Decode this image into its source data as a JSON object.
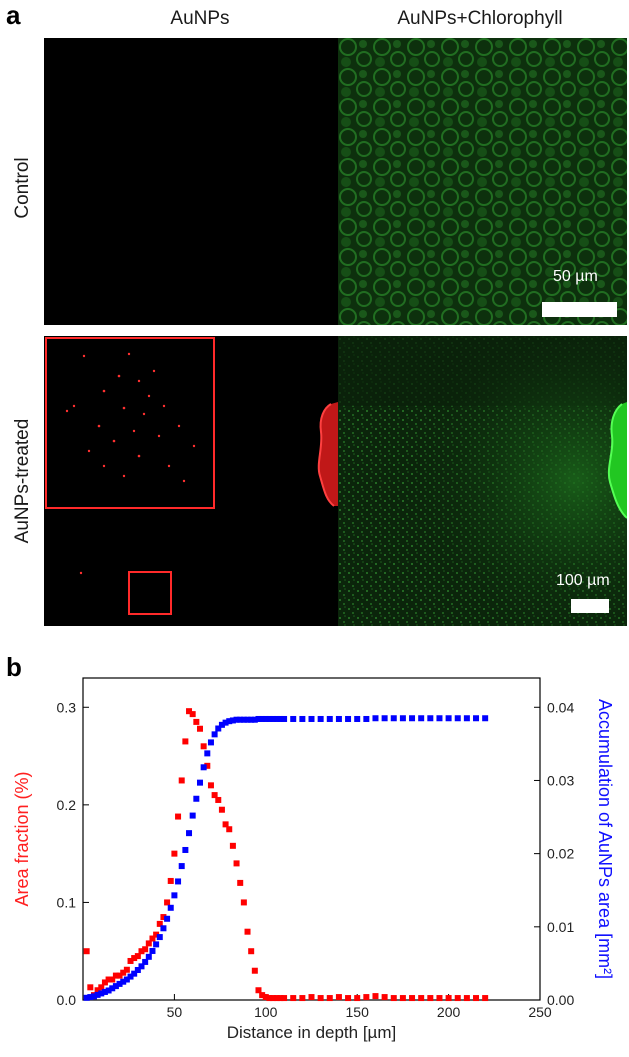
{
  "panel_a": {
    "letter": "a",
    "columns": [
      "AuNPs",
      "AuNPs+Chlorophyll"
    ],
    "rows": [
      "Control",
      "AuNPs-treated"
    ],
    "scale_bars": [
      "50 µm",
      "100 µm"
    ],
    "colors": {
      "au_signal": "#ff2020",
      "chlorophyll": "#2fd12f",
      "background": "#000000"
    }
  },
  "panel_b": {
    "letter": "b"
  },
  "chart_data": {
    "type": "scatter",
    "xlabel": "Distance in depth [µm]",
    "ylabel_left": "Area fraction (%)",
    "ylabel_right": "Accumulation of AuNPs area [mm²]",
    "xlim": [
      0,
      250
    ],
    "ylim_left": [
      0,
      0.33
    ],
    "ylim_right": [
      0,
      0.044
    ],
    "xticks": [
      50,
      100,
      150,
      200,
      250
    ],
    "yticks_left": [
      "0.0",
      "0.1",
      "0.2",
      "0.3"
    ],
    "yticks_right": [
      "0.00",
      "0.01",
      "0.02",
      "0.03",
      "0.04"
    ],
    "grid": false,
    "series": [
      {
        "axis": "left",
        "color": "#ff0000",
        "x": [
          2,
          4,
          6,
          8,
          10,
          12,
          14,
          16,
          18,
          20,
          22,
          24,
          26,
          28,
          30,
          32,
          34,
          36,
          38,
          40,
          42,
          44,
          46,
          48,
          50,
          52,
          54,
          56,
          58,
          60,
          62,
          64,
          66,
          68,
          70,
          72,
          74,
          76,
          78,
          80,
          82,
          84,
          86,
          88,
          90,
          92,
          94,
          96,
          98,
          100,
          102,
          104,
          106,
          108,
          110,
          115,
          120,
          125,
          130,
          135,
          140,
          145,
          150,
          155,
          160,
          165,
          170,
          175,
          180,
          185,
          190,
          195,
          200,
          205,
          210,
          215,
          220
        ],
        "y": [
          0.05,
          0.013,
          0.005,
          0.01,
          0.013,
          0.018,
          0.021,
          0.021,
          0.025,
          0.025,
          0.028,
          0.031,
          0.04,
          0.043,
          0.045,
          0.05,
          0.052,
          0.058,
          0.063,
          0.067,
          0.078,
          0.085,
          0.1,
          0.122,
          0.15,
          0.188,
          0.225,
          0.265,
          0.296,
          0.293,
          0.285,
          0.278,
          0.26,
          0.24,
          0.22,
          0.21,
          0.205,
          0.195,
          0.18,
          0.175,
          0.158,
          0.14,
          0.12,
          0.1,
          0.07,
          0.05,
          0.03,
          0.01,
          0.005,
          0.003,
          0.002,
          0.002,
          0.002,
          0.002,
          0.002,
          0.002,
          0.002,
          0.003,
          0.002,
          0.002,
          0.003,
          0.002,
          0.002,
          0.003,
          0.004,
          0.003,
          0.002,
          0.002,
          0.002,
          0.002,
          0.002,
          0.002,
          0.002,
          0.002,
          0.002,
          0.002,
          0.002
        ]
      },
      {
        "axis": "right",
        "color": "#0000ff",
        "x": [
          2,
          4,
          6,
          8,
          10,
          12,
          14,
          16,
          18,
          20,
          22,
          24,
          26,
          28,
          30,
          32,
          34,
          36,
          38,
          40,
          42,
          44,
          46,
          48,
          50,
          52,
          54,
          56,
          58,
          60,
          62,
          64,
          66,
          68,
          70,
          72,
          74,
          76,
          78,
          80,
          82,
          84,
          86,
          88,
          90,
          92,
          94,
          96,
          98,
          100,
          102,
          104,
          106,
          108,
          110,
          115,
          120,
          125,
          130,
          135,
          140,
          145,
          150,
          155,
          160,
          165,
          170,
          175,
          180,
          185,
          190,
          195,
          200,
          205,
          210,
          215,
          220
        ],
        "y": [
          0.0003,
          0.0004,
          0.0005,
          0.0007,
          0.0009,
          0.0011,
          0.0013,
          0.0016,
          0.0019,
          0.0022,
          0.0025,
          0.0028,
          0.0032,
          0.0036,
          0.0041,
          0.0046,
          0.0052,
          0.0059,
          0.0067,
          0.0076,
          0.0086,
          0.0098,
          0.0111,
          0.0126,
          0.0143,
          0.0162,
          0.0183,
          0.0205,
          0.0228,
          0.0252,
          0.0275,
          0.0297,
          0.0318,
          0.0337,
          0.0352,
          0.0363,
          0.0371,
          0.0376,
          0.0379,
          0.0381,
          0.0382,
          0.0383,
          0.0383,
          0.0383,
          0.0383,
          0.0383,
          0.0383,
          0.0384,
          0.0384,
          0.0384,
          0.0384,
          0.0384,
          0.0384,
          0.0384,
          0.0384,
          0.0384,
          0.0384,
          0.0384,
          0.0384,
          0.0384,
          0.0384,
          0.0384,
          0.0384,
          0.0384,
          0.0385,
          0.0385,
          0.0385,
          0.0385,
          0.0385,
          0.0385,
          0.0385,
          0.0385,
          0.0385,
          0.0385,
          0.0385,
          0.0385,
          0.0385
        ]
      }
    ]
  }
}
